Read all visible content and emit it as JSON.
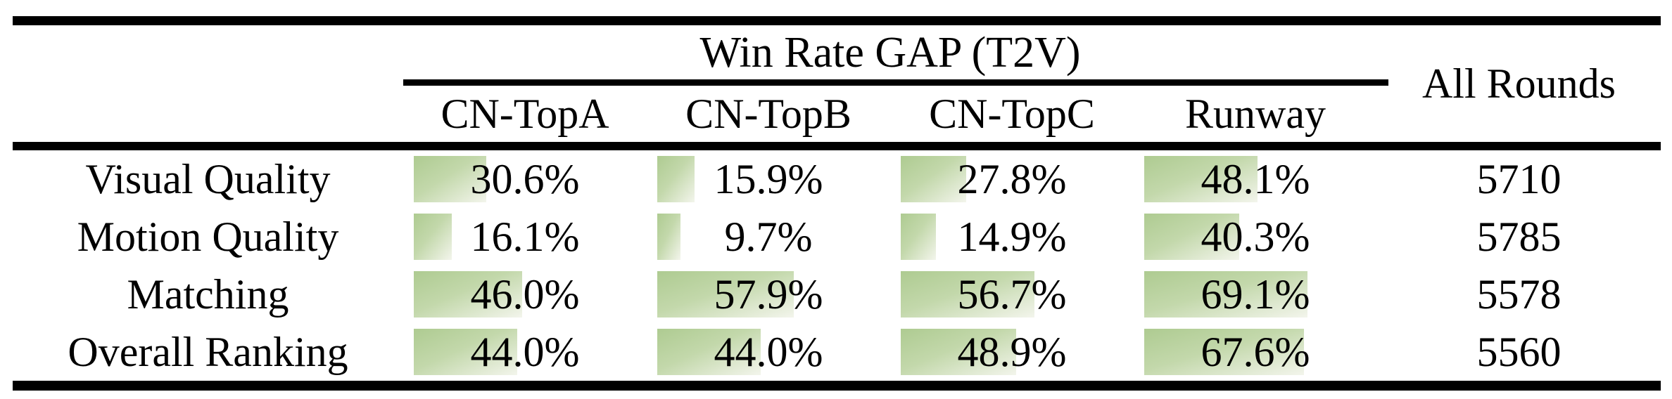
{
  "table": {
    "title": "Win Rate GAP (T2V)",
    "columns": [
      "CN-TopA",
      "CN-TopB",
      "CN-TopC",
      "Runway"
    ],
    "all_rounds_header": "All Rounds",
    "rows": [
      {
        "label": "Visual Quality",
        "values": [
          30.6,
          15.9,
          27.8,
          48.1
        ],
        "display": [
          "30.6%",
          "15.9%",
          "27.8%",
          "48.1%"
        ],
        "all_rounds": "5710"
      },
      {
        "label": "Motion Quality",
        "values": [
          16.1,
          9.7,
          14.9,
          40.3
        ],
        "display": [
          "16.1%",
          "9.7%",
          "14.9%",
          "40.3%"
        ],
        "all_rounds": "5785"
      },
      {
        "label": "Matching",
        "values": [
          46.0,
          57.9,
          56.7,
          69.1
        ],
        "display": [
          "46.0%",
          "57.9%",
          "56.7%",
          "69.1%"
        ],
        "all_rounds": "5578"
      },
      {
        "label": "Overall Ranking",
        "values": [
          44.0,
          44.0,
          48.9,
          67.6
        ],
        "display": [
          "44.0%",
          "44.0%",
          "48.9%",
          "67.6%"
        ],
        "all_rounds": "5560"
      }
    ]
  },
  "colors": {
    "bar_green_start": "#aecb91",
    "bar_green_end": "#f3f5ec",
    "rule_black": "#000000",
    "text_black": "#000000",
    "background": "#ffffff"
  },
  "chart_data": {
    "type": "table",
    "title": "Win Rate GAP (T2V)",
    "columns": [
      "CN-TopA",
      "CN-TopB",
      "CN-TopC",
      "Runway",
      "All Rounds"
    ],
    "row_labels": [
      "Visual Quality",
      "Motion Quality",
      "Matching",
      "Overall Ranking"
    ],
    "series": [
      {
        "name": "Visual Quality",
        "win_rate_gap_pct": [
          30.6,
          15.9,
          27.8,
          48.1
        ],
        "all_rounds": 5710
      },
      {
        "name": "Motion Quality",
        "win_rate_gap_pct": [
          16.1,
          9.7,
          14.9,
          40.3
        ],
        "all_rounds": 5785
      },
      {
        "name": "Matching",
        "win_rate_gap_pct": [
          46.0,
          57.9,
          56.7,
          69.1
        ],
        "all_rounds": 5578
      },
      {
        "name": "Overall Ranking",
        "win_rate_gap_pct": [
          44.0,
          44.0,
          48.9,
          67.6
        ],
        "all_rounds": 5560
      }
    ],
    "notes": "Green in-cell data bars proportional to percentage value, 100% = full cell width"
  }
}
